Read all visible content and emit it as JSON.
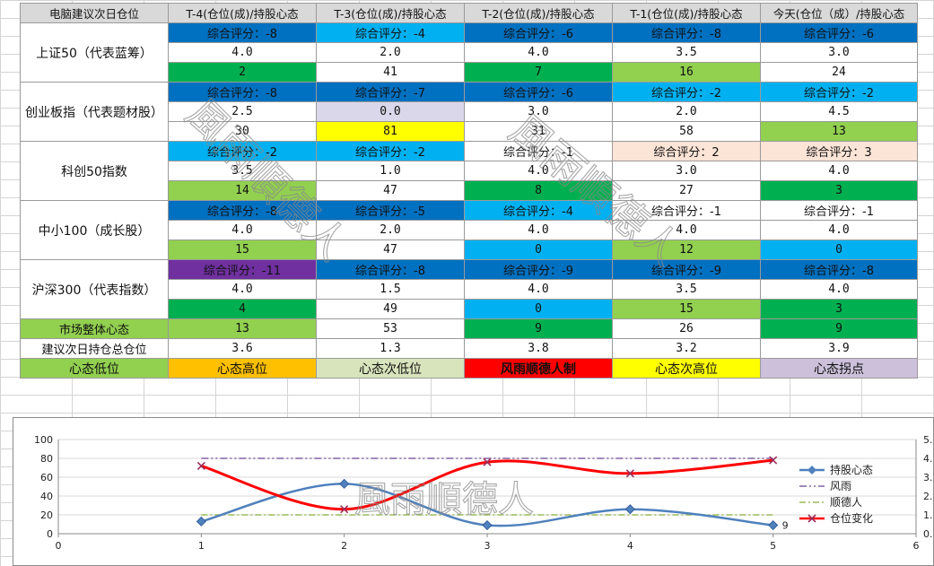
{
  "table": {
    "header": [
      "电脑建议次日仓位",
      "T-4(仓位(成)/持股心态",
      "T-3(仓位(成)/持股心态",
      "T-2(仓位(成)/持股心态",
      "T-1(仓位(成)/持股心态",
      "今天(仓位（成）/持股心态"
    ],
    "indices": [
      {
        "name": "上证50（代表蓝筹）",
        "scores": [
          "综合评分：-8",
          "综合评分：-4",
          "综合评分：-6",
          "综合评分：-8",
          "综合评分：-6"
        ],
        "positions": [
          "4.0",
          "2.0",
          "4.0",
          "3.5",
          "3.0"
        ],
        "sentiments": [
          "2",
          "41",
          "7",
          "16",
          "24"
        ],
        "score_colors": [
          "#0070c0",
          "#00b0f0",
          "#0070c0",
          "#0070c0",
          "#0070c0"
        ],
        "sentiment_colors": [
          "#00b050",
          "#ffffff",
          "#00b050",
          "#92d050",
          "#ffffff"
        ]
      },
      {
        "name": "创业板指（代表题材股）",
        "scores": [
          "综合评分：-8",
          "综合评分：-7",
          "综合评分：-6",
          "综合评分：-2",
          "综合评分：-2"
        ],
        "positions": [
          "2.5",
          "0.0",
          "3.0",
          "2.0",
          "4.5"
        ],
        "sentiments": [
          "30",
          "81",
          "31",
          "58",
          "13"
        ],
        "score_colors": [
          "#0070c0",
          "#0070c0",
          "#0070c0",
          "#00b0f0",
          "#00b0f0"
        ],
        "position_colors": [
          "#ffffff",
          "#dad7ea",
          "#ffffff",
          "#ffffff",
          "#ffffff"
        ],
        "sentiment_colors": [
          "#ffffff",
          "#ffff00",
          "#ffffff",
          "#ffffff",
          "#92d050"
        ]
      },
      {
        "name": "科创50指数",
        "scores": [
          "综合评分：-2",
          "综合评分：-2",
          "综合评分：-1",
          "综合评分：2",
          "综合评分：3"
        ],
        "positions": [
          "3.5",
          "1.0",
          "4.0",
          "3.0",
          "4.0"
        ],
        "sentiments": [
          "14",
          "47",
          "8",
          "27",
          "3"
        ],
        "score_colors": [
          "#00b0f0",
          "#00b0f0",
          "#ffffff",
          "#fce4d6",
          "#fce4d6"
        ],
        "sentiment_colors": [
          "#92d050",
          "#ffffff",
          "#00b050",
          "#ffffff",
          "#00b050"
        ]
      },
      {
        "name": "中小100（成长股）",
        "scores": [
          "综合评分：-8",
          "综合评分：-5",
          "综合评分：-4",
          "综合评分：-1",
          "综合评分：-1"
        ],
        "positions": [
          "4.0",
          "2.0",
          "4.0",
          "4.0",
          "4.0"
        ],
        "sentiments": [
          "15",
          "47",
          "0",
          "12",
          "0"
        ],
        "score_colors": [
          "#0070c0",
          "#0070c0",
          "#00b0f0",
          "#ffffff",
          "#ffffff"
        ],
        "sentiment_colors": [
          "#92d050",
          "#ffffff",
          "#00b0f0",
          "#92d050",
          "#00b0f0"
        ]
      },
      {
        "name": "沪深300（代表指数）",
        "scores": [
          "综合评分：-11",
          "综合评分：-8",
          "综合评分：-9",
          "综合评分：-9",
          "综合评分：-8"
        ],
        "positions": [
          "4.0",
          "1.5",
          "4.0",
          "3.5",
          "4.0"
        ],
        "sentiments": [
          "4",
          "49",
          "0",
          "15",
          "3"
        ],
        "score_colors": [
          "#7030a0",
          "#0070c0",
          "#0070c0",
          "#0070c0",
          "#0070c0"
        ],
        "sentiment_colors": [
          "#00b050",
          "#ffffff",
          "#00b0f0",
          "#92d050",
          "#00b050"
        ]
      }
    ],
    "market_label": "市场整体心态",
    "market_values": [
      "13",
      "53",
      "9",
      "26",
      "9"
    ],
    "market_colors": [
      "#92d050",
      "#92d050",
      "#ffffff",
      "#00b050",
      "#ffffff",
      "#00b050"
    ],
    "total_label": "建议次日持仓总仓位",
    "total_values": [
      "3.6",
      "1.3",
      "3.8",
      "3.2",
      "3.9"
    ],
    "legend": [
      {
        "label": "心态低位",
        "color": "#92d050",
        "text_color": "#111111"
      },
      {
        "label": "心态高位",
        "color": "#ffc000",
        "text_color": "#111111"
      },
      {
        "label": "心态次低位",
        "color": "#d8e4bc",
        "text_color": "#111111"
      },
      {
        "label": "风雨顺德人制",
        "color": "#ff0000",
        "text_color": "#111111"
      },
      {
        "label": "心态次高位",
        "color": "#ffff00",
        "text_color": "#111111"
      },
      {
        "label": "心态拐点",
        "color": "#ccc0da",
        "text_color": "#111111"
      }
    ]
  },
  "watermark": "風雨順德人",
  "chart_data": {
    "type": "line",
    "x": [
      1,
      2,
      3,
      4,
      5
    ],
    "xlim": [
      0,
      6
    ],
    "x_ticks": [
      "0",
      "1",
      "2",
      "3",
      "4",
      "5",
      "6"
    ],
    "ylim": [
      0,
      100
    ],
    "y_ticks": [
      "0",
      "20",
      "40",
      "60",
      "80",
      "100"
    ],
    "y2lim": [
      0,
      5
    ],
    "y2_ticks": [
      "0.00",
      "1.00",
      "2.00",
      "3.00",
      "4.00",
      "5.00"
    ],
    "grid": true,
    "legend_position": "right",
    "series": [
      {
        "name": "持股心态",
        "axis": "left",
        "values": [
          13,
          53,
          9,
          26,
          9
        ],
        "color": "#4f81bd",
        "marker": "diamond",
        "smooth": true
      },
      {
        "name": "风雨",
        "axis": "left",
        "values": [
          80,
          80,
          80,
          80,
          80
        ],
        "color": "#8064a2",
        "marker": "none",
        "dash": "dash-dot-dot"
      },
      {
        "name": "顺德人",
        "axis": "left",
        "values": [
          20,
          20,
          20,
          20,
          20
        ],
        "color": "#9bbb59",
        "marker": "none",
        "dash": "dash-dot"
      },
      {
        "name": "仓位变化",
        "axis": "right",
        "values": [
          3.6,
          1.3,
          3.8,
          3.2,
          3.9
        ],
        "color": "#ff0000",
        "marker": "x",
        "smooth": true
      }
    ],
    "data_labels": [
      {
        "series": "持股心态",
        "index": 4,
        "text": "9"
      }
    ]
  }
}
